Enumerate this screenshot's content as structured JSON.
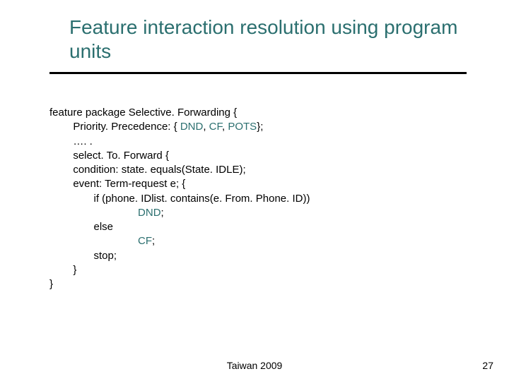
{
  "title": {
    "text": "Feature interaction resolution using program units",
    "color": "#2b6f6f",
    "fontsize": 28
  },
  "underline_color": "#000000",
  "colors": {
    "dnd": "#2b6f6f",
    "cf": "#2b6f6f",
    "pots": "#2b6f6f",
    "text": "#000000",
    "background": "#ffffff"
  },
  "code": {
    "l1a": "feature package Selective. Forwarding {",
    "l2a": "        Priority. Precedence: { ",
    "l2_dnd": "DND",
    "l2b": ", ",
    "l2_cf": "CF",
    "l2c": ", ",
    "l2_pots": "POTS",
    "l2d": "};",
    "l3": "        …. .",
    "l4": "",
    "l5": "        select. To. Forward {",
    "l6": "        condition: state. equals(State. IDLE);",
    "l7": "        event: Term-request e; {",
    "l8": "               if (phone. IDlist. contains(e. From. Phone. ID))",
    "l9a": "                              ",
    "l9_dnd": "DND",
    "l9b": ";",
    "l10": "               else",
    "l11a": "                              ",
    "l11_cf": "CF",
    "l11b": ";",
    "l12": "               stop;",
    "l13": "        }",
    "l14": "}"
  },
  "footer": "Taiwan 2009",
  "pagenum": "27"
}
